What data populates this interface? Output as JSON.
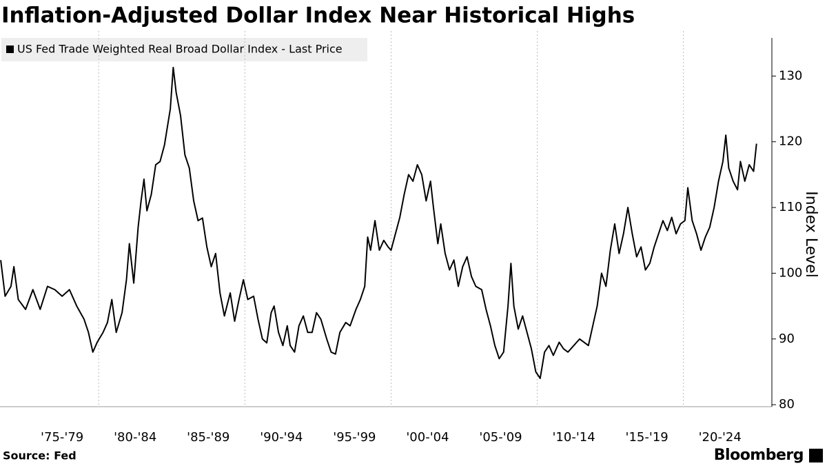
{
  "chart_data": {
    "type": "line",
    "title": "Inflation-Adjusted Dollar Index Near Historical Highs",
    "y_axis_label": "Index Level",
    "source": "Source: Fed",
    "brand": "Bloomberg",
    "xlim": [
      1973.25,
      2026.05
    ],
    "ylim": [
      79.7,
      135.8
    ],
    "yticks": [
      80,
      90,
      100,
      110,
      120,
      130
    ],
    "xticks": [
      {
        "value": 1977.5,
        "label": "'75-'79"
      },
      {
        "value": 1982.5,
        "label": "'80-'84"
      },
      {
        "value": 1987.5,
        "label": "'85-'89"
      },
      {
        "value": 1992.5,
        "label": "'90-'94"
      },
      {
        "value": 1997.5,
        "label": "'95-'99"
      },
      {
        "value": 2002.5,
        "label": "'00-'04"
      },
      {
        "value": 2007.5,
        "label": "'05-'09"
      },
      {
        "value": 2012.5,
        "label": "'10-'14"
      },
      {
        "value": 2017.5,
        "label": "'15-'19"
      },
      {
        "value": 2022.5,
        "label": "'20-'24"
      }
    ],
    "x_gridlines": [
      1980,
      1990,
      2000,
      2010,
      2020
    ],
    "grid": true,
    "legend": "top-left",
    "x": [
      1973.3,
      1973.6,
      1974.0,
      1974.2,
      1974.5,
      1975.0,
      1975.5,
      1976.0,
      1976.5,
      1977.0,
      1977.5,
      1978.0,
      1978.5,
      1979.0,
      1979.3,
      1979.6,
      1979.9,
      1980.3,
      1980.6,
      1980.9,
      1981.2,
      1981.6,
      1981.9,
      1982.1,
      1982.4,
      1982.7,
      1982.9,
      1983.1,
      1983.3,
      1983.6,
      1983.9,
      1984.2,
      1984.5,
      1984.9,
      1985.1,
      1985.3,
      1985.6,
      1985.9,
      1986.2,
      1986.5,
      1986.8,
      1987.1,
      1987.4,
      1987.7,
      1988.0,
      1988.3,
      1988.6,
      1989.0,
      1989.3,
      1989.6,
      1989.9,
      1990.2,
      1990.6,
      1990.9,
      1991.2,
      1991.5,
      1991.8,
      1992.0,
      1992.3,
      1992.6,
      1992.9,
      1993.1,
      1993.4,
      1993.7,
      1994.0,
      1994.3,
      1994.6,
      1994.9,
      1995.2,
      1995.6,
      1995.9,
      1996.2,
      1996.5,
      1996.9,
      1997.2,
      1997.6,
      1997.9,
      1998.2,
      1998.4,
      1998.6,
      1998.9,
      1999.2,
      1999.5,
      1999.8,
      2000.0,
      2000.3,
      2000.6,
      2000.9,
      2001.2,
      2001.5,
      2001.8,
      2002.1,
      2002.4,
      2002.7,
      2002.9,
      2003.2,
      2003.4,
      2003.7,
      2004.0,
      2004.3,
      2004.6,
      2004.9,
      2005.2,
      2005.5,
      2005.8,
      2006.2,
      2006.5,
      2006.8,
      2007.1,
      2007.4,
      2007.7,
      2008.0,
      2008.2,
      2008.4,
      2008.7,
      2009.0,
      2009.3,
      2009.6,
      2009.9,
      2010.2,
      2010.5,
      2010.8,
      2011.1,
      2011.5,
      2011.8,
      2012.1,
      2012.5,
      2012.9,
      2013.2,
      2013.5,
      2013.8,
      2014.1,
      2014.4,
      2014.7,
      2015.0,
      2015.3,
      2015.6,
      2015.9,
      2016.2,
      2016.5,
      2016.8,
      2017.1,
      2017.4,
      2017.7,
      2018.0,
      2018.3,
      2018.6,
      2018.9,
      2019.2,
      2019.5,
      2019.8,
      2020.1,
      2020.3,
      2020.6,
      2020.9,
      2021.2,
      2021.5,
      2021.8,
      2022.1,
      2022.4,
      2022.7,
      2022.9,
      2023.1,
      2023.4,
      2023.7,
      2023.9,
      2024.2,
      2024.5,
      2024.8,
      2025.0
    ],
    "series": [
      {
        "name": "US Fed Trade Weighted Real Broad Dollar Index - Last Price",
        "color": "#000000",
        "values": [
          102,
          96.5,
          98,
          101,
          96,
          94.5,
          97.5,
          94.5,
          98,
          97.5,
          96.5,
          97.5,
          95,
          93,
          91,
          88,
          89.5,
          91,
          92.5,
          96,
          91,
          94,
          99,
          104.5,
          98.5,
          107,
          111,
          114.3,
          109.5,
          112,
          116.5,
          117,
          119.5,
          125,
          131.3,
          127.5,
          124,
          118,
          116,
          111,
          108,
          108.4,
          104,
          101,
          103,
          97,
          93.5,
          97,
          92.7,
          96,
          99,
          96,
          96.5,
          93,
          90,
          89.4,
          94,
          95,
          91,
          89,
          92,
          89,
          88,
          92,
          93.5,
          91,
          91,
          94,
          93,
          90,
          88,
          87.7,
          91,
          92.5,
          92,
          94.5,
          96,
          98,
          105.5,
          103.5,
          108,
          103.5,
          105,
          104,
          103.5,
          106,
          108.5,
          112,
          115,
          114,
          116.5,
          115,
          111,
          114,
          110,
          104.5,
          107.5,
          103,
          100.5,
          102,
          98,
          101,
          102.5,
          99.5,
          98,
          97.5,
          94.5,
          92,
          89,
          87,
          88,
          95,
          101.5,
          95,
          91.5,
          93.5,
          91,
          88.5,
          85,
          84,
          88,
          89,
          87.5,
          89.5,
          88.5,
          88,
          89,
          90,
          89.5,
          89,
          92,
          95,
          100,
          98,
          103.5,
          107.5,
          103,
          106,
          110,
          106,
          102.5,
          104,
          100.5,
          101.5,
          104,
          106,
          108,
          106.5,
          108.5,
          106,
          107.5,
          108,
          113,
          108,
          106,
          103.5,
          105.5,
          107,
          110,
          114,
          117,
          121,
          116,
          114,
          112.7,
          117,
          114,
          116.5,
          115.5,
          119.7
        ]
      }
    ]
  }
}
